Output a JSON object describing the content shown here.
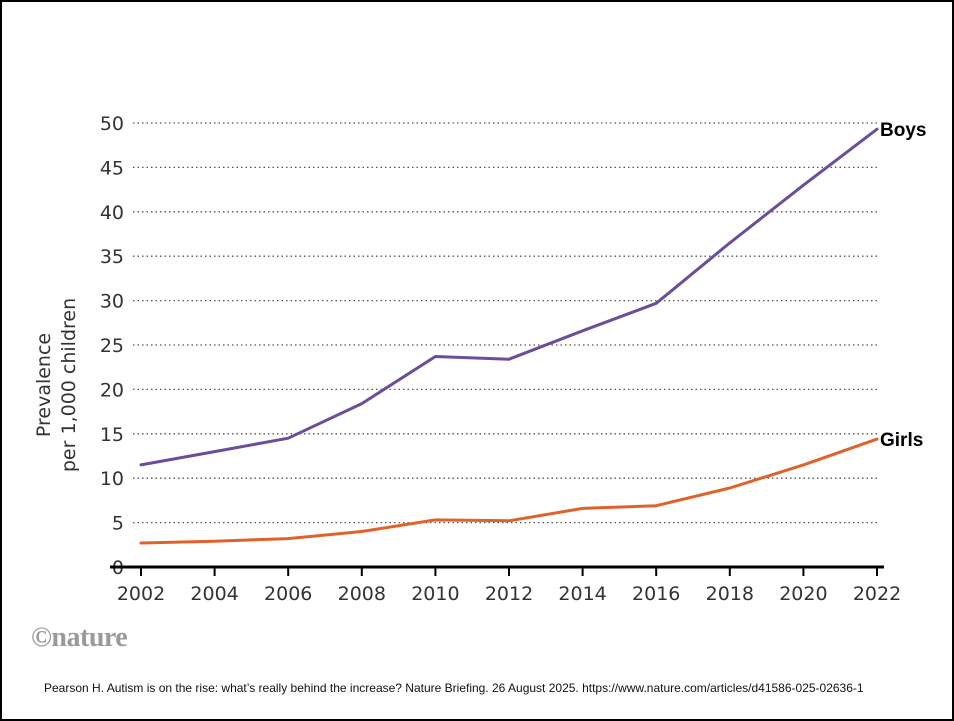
{
  "chart_data": {
    "type": "line",
    "x": [
      2002,
      2004,
      2006,
      2008,
      2010,
      2012,
      2014,
      2016,
      2018,
      2020,
      2022
    ],
    "series": [
      {
        "name": "Boys",
        "color": "#6a4d9b",
        "values": [
          11.5,
          13.0,
          14.5,
          18.4,
          23.7,
          23.4,
          26.6,
          29.7,
          36.5,
          43.0,
          49.3
        ]
      },
      {
        "name": "Girls",
        "color": "#e0622a",
        "values": [
          2.7,
          2.9,
          3.2,
          4.0,
          5.3,
          5.2,
          6.6,
          6.9,
          8.9,
          11.5,
          14.4
        ]
      }
    ],
    "ylabel_line1": "Prevalence",
    "ylabel_line2": "per 1,000 children",
    "xlim": [
      2002,
      2022
    ],
    "ylim": [
      0,
      50
    ],
    "y_ticks": [
      0,
      5,
      10,
      15,
      20,
      25,
      30,
      35,
      40,
      45,
      50
    ],
    "x_ticks": [
      2002,
      2004,
      2006,
      2008,
      2010,
      2012,
      2014,
      2016,
      2018,
      2020,
      2022
    ],
    "grid": "horizontal dotted",
    "legend": "inline labels at line ends"
  },
  "logo_text": "©nature",
  "citation": "Pearson H. Autism is on the rise: what’s really behind the increase? Nature Briefing. 26 August 2025. https://www.nature.com/articles/d41586-025-02636-1"
}
